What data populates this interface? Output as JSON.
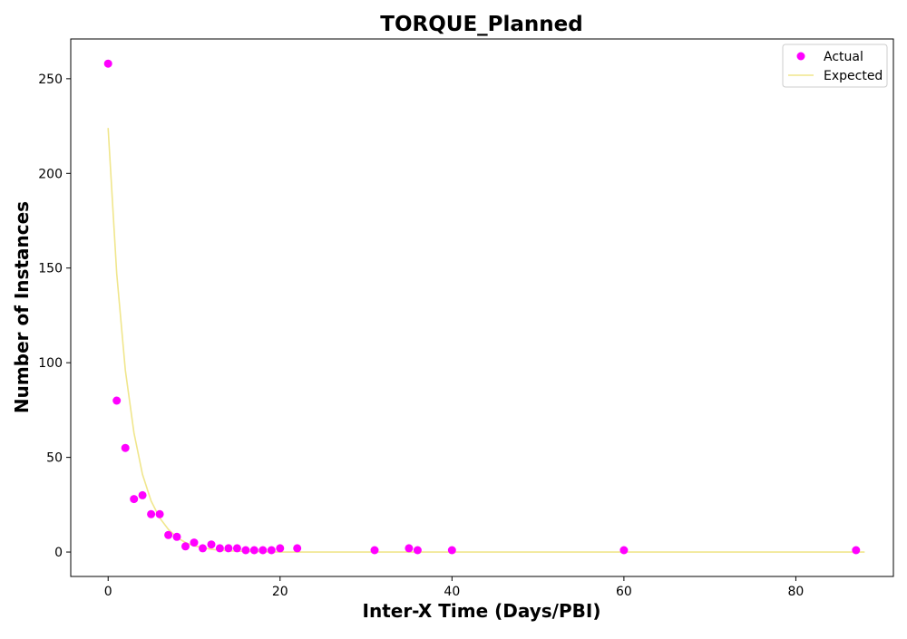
{
  "chart_data": {
    "type": "scatter",
    "title": "TORQUE_Planned",
    "xlabel": "Inter-X Time (Days/PBI)",
    "ylabel": "Number of Instances",
    "xlim": [
      -4.35,
      91.35
    ],
    "ylim": [
      -12.9,
      271.0
    ],
    "xticks": [
      0,
      20,
      40,
      60,
      80
    ],
    "yticks": [
      0,
      50,
      100,
      150,
      200,
      250
    ],
    "grid": false,
    "legend_position": "top-right",
    "series": [
      {
        "name": "Actual",
        "kind": "scatter",
        "color": "#ff00ff",
        "x": [
          0,
          1,
          2,
          3,
          4,
          5,
          6,
          7,
          8,
          9,
          10,
          11,
          12,
          13,
          14,
          15,
          16,
          17,
          18,
          19,
          20,
          22,
          31,
          35,
          36,
          40,
          60,
          87
        ],
        "y": [
          258,
          80,
          55,
          28,
          30,
          20,
          20,
          9,
          8,
          3,
          5,
          2,
          4,
          2,
          2,
          2,
          1,
          1,
          1,
          1,
          2,
          2,
          1,
          2,
          1,
          1,
          1,
          1
        ]
      },
      {
        "name": "Expected",
        "kind": "line",
        "color": "#f0e68c",
        "x": [
          0,
          1,
          2,
          3,
          4,
          5,
          6,
          7,
          8,
          9,
          10,
          12,
          14,
          16,
          18,
          20,
          25,
          30,
          40,
          50,
          60,
          70,
          80,
          88
        ],
        "y": [
          224,
          147,
          96,
          63,
          41,
          27,
          18,
          12,
          7.7,
          5,
          3.3,
          1.4,
          0.6,
          0.3,
          0.1,
          0,
          0,
          0,
          0,
          0,
          0,
          0,
          0,
          0
        ]
      }
    ]
  }
}
